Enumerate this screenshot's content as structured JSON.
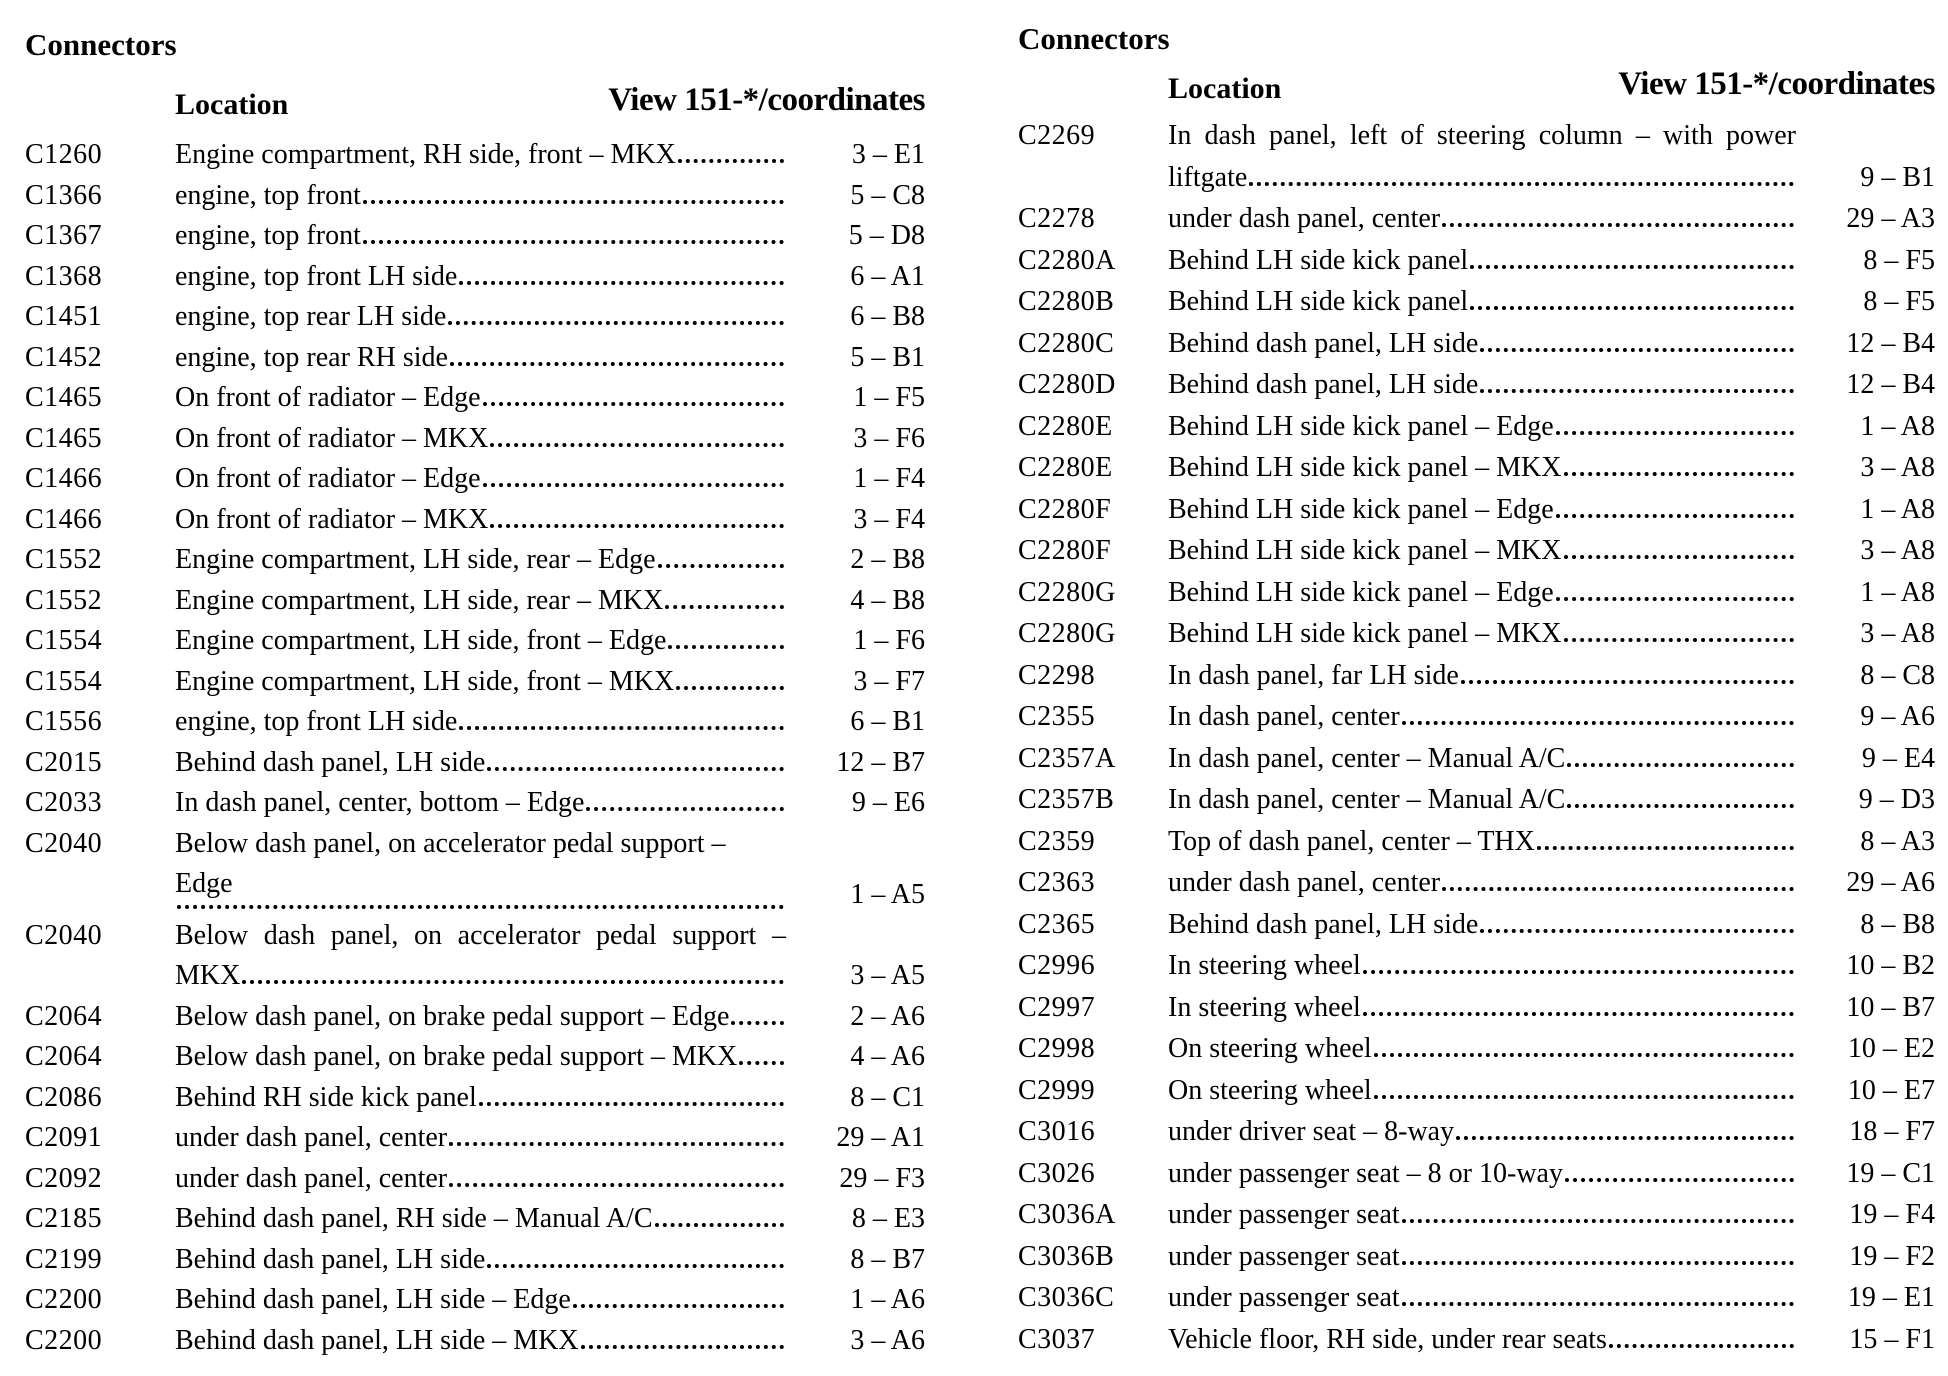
{
  "colors": {
    "background": "#ffffff",
    "text": "#000000"
  },
  "page": {
    "columns": [
      {
        "section_title": "Connectors",
        "location_header": "Location",
        "view_header": "View 151-*/coordinates",
        "rows": [
          {
            "id": "C1260",
            "loc": "Engine compartment, RH side, front – MKX",
            "coord": "3 – E1"
          },
          {
            "id": "C1366",
            "loc": "engine, top front",
            "coord": "5 – C8"
          },
          {
            "id": "C1367",
            "loc": "engine, top front",
            "coord": "5 – D8"
          },
          {
            "id": "C1368",
            "loc": "engine, top front LH side",
            "coord": "6 – A1"
          },
          {
            "id": "C1451",
            "loc": "engine, top rear LH side",
            "coord": "6 – B8"
          },
          {
            "id": "C1452",
            "loc": "engine, top rear RH side",
            "coord": "5 – B1"
          },
          {
            "id": "C1465",
            "loc": "On front of radiator – Edge",
            "coord": "1 – F5"
          },
          {
            "id": "C1465",
            "loc": "On front of radiator – MKX",
            "coord": "3 – F6"
          },
          {
            "id": "C1466",
            "loc": "On front of radiator – Edge",
            "coord": "1 – F4"
          },
          {
            "id": "C1466",
            "loc": "On front of radiator – MKX",
            "coord": "3 – F4"
          },
          {
            "id": "C1552",
            "loc": "Engine compartment, LH side, rear – Edge",
            "coord": "2 – B8"
          },
          {
            "id": "C1552",
            "loc": "Engine compartment, LH side, rear – MKX",
            "coord": "4 – B8"
          },
          {
            "id": "C1554",
            "loc": "Engine compartment, LH side, front – Edge",
            "coord": "1 – F6"
          },
          {
            "id": "C1554",
            "loc": "Engine compartment, LH side, front – MKX",
            "coord": "3 – F7"
          },
          {
            "id": "C1556",
            "loc": "engine, top front LH side",
            "coord": "6 – B1"
          },
          {
            "id": "C2015",
            "loc": "Behind dash panel, LH side",
            "coord": "12 – B7"
          },
          {
            "id": "C2033",
            "loc": "In dash panel, center, bottom – Edge",
            "coord": "9 – E6"
          },
          {
            "id": "C2040",
            "loc": "Below dash panel, on accelerator pedal support – Edge",
            "loc2": "",
            "justify": false,
            "coord": "1 – A5"
          },
          {
            "id": "C2040",
            "loc": "Below dash panel, on accelerator pedal support –",
            "loc2": "MKX",
            "justify": true,
            "coord": "3 – A5"
          },
          {
            "id": "C2064",
            "loc": "Below dash panel, on brake pedal support – Edge",
            "coord": "2 – A6"
          },
          {
            "id": "C2064",
            "loc": "Below dash panel, on brake pedal support – MKX",
            "coord": "4 – A6"
          },
          {
            "id": "C2086",
            "loc": "Behind RH side kick panel",
            "coord": "8 – C1"
          },
          {
            "id": "C2091",
            "loc": "under dash panel, center",
            "coord": "29 – A1"
          },
          {
            "id": "C2092",
            "loc": "under dash panel, center",
            "coord": "29 – F3"
          },
          {
            "id": "C2185",
            "loc": "Behind dash panel, RH side – Manual A/C",
            "coord": "8 – E3"
          },
          {
            "id": "C2199",
            "loc": "Behind dash panel, LH side",
            "coord": "8 – B7"
          },
          {
            "id": "C2200",
            "loc": "Behind dash panel, LH side – Edge",
            "coord": "1 – A6"
          },
          {
            "id": "C2200",
            "loc": "Behind dash panel, LH side – MKX",
            "coord": "3 – A6"
          }
        ]
      },
      {
        "section_title": "Connectors",
        "location_header": "Location",
        "view_header": "View 151-*/coordinates",
        "rows": [
          {
            "id": "C2269",
            "loc": "In dash panel, left of steering column – with power",
            "loc2": "liftgate",
            "justify": true,
            "coord": "9 – B1"
          },
          {
            "id": "C2278",
            "loc": "under dash panel, center",
            "coord": "29 – A3"
          },
          {
            "id": "C2280A",
            "loc": "Behind LH side kick panel",
            "coord": "8 – F5"
          },
          {
            "id": "C2280B",
            "loc": "Behind LH side kick panel",
            "coord": "8 – F5"
          },
          {
            "id": "C2280C",
            "loc": "Behind dash panel, LH side",
            "coord": "12 – B4"
          },
          {
            "id": "C2280D",
            "loc": "Behind dash panel, LH side",
            "coord": "12 – B4"
          },
          {
            "id": "C2280E",
            "loc": "Behind LH side kick panel – Edge",
            "coord": "1 – A8"
          },
          {
            "id": "C2280E",
            "loc": "Behind LH side kick panel – MKX",
            "coord": "3 – A8"
          },
          {
            "id": "C2280F",
            "loc": "Behind LH side kick panel – Edge",
            "coord": "1 – A8"
          },
          {
            "id": "C2280F",
            "loc": "Behind LH side kick panel – MKX",
            "coord": "3 – A8"
          },
          {
            "id": "C2280G",
            "loc": "Behind LH side kick panel – Edge",
            "coord": "1 – A8"
          },
          {
            "id": "C2280G",
            "loc": "Behind LH side kick panel – MKX",
            "coord": "3 – A8"
          },
          {
            "id": "C2298",
            "loc": "In dash panel, far LH side",
            "coord": "8 – C8"
          },
          {
            "id": "C2355",
            "loc": "In dash panel, center",
            "coord": "9 – A6"
          },
          {
            "id": "C2357A",
            "loc": "In dash panel, center – Manual A/C",
            "coord": "9 – E4"
          },
          {
            "id": "C2357B",
            "loc": "In dash panel, center – Manual A/C",
            "coord": "9 – D3"
          },
          {
            "id": "C2359",
            "loc": "Top of dash panel, center – THX",
            "coord": "8 – A3"
          },
          {
            "id": "C2363",
            "loc": "under dash panel, center",
            "coord": "29 – A6"
          },
          {
            "id": "C2365",
            "loc": "Behind dash panel, LH side",
            "coord": "8 – B8"
          },
          {
            "id": "C2996",
            "loc": "In steering wheel",
            "coord": "10 – B2"
          },
          {
            "id": "C2997",
            "loc": "In steering wheel",
            "coord": "10 – B7"
          },
          {
            "id": "C2998",
            "loc": "On steering wheel",
            "coord": "10 – E2"
          },
          {
            "id": "C2999",
            "loc": "On steering wheel",
            "coord": "10 – E7"
          },
          {
            "id": "C3016",
            "loc": "under driver seat – 8-way",
            "coord": "18 – F7"
          },
          {
            "id": "C3026",
            "loc": "under passenger seat – 8 or 10-way",
            "coord": "19 – C1"
          },
          {
            "id": "C3036A",
            "loc": "under passenger seat",
            "coord": "19 – F4"
          },
          {
            "id": "C3036B",
            "loc": "under passenger seat",
            "coord": "19 – F2"
          },
          {
            "id": "C3036C",
            "loc": "under passenger seat",
            "coord": "19 – E1"
          },
          {
            "id": "C3037",
            "loc": "Vehicle floor, RH side, under rear seats",
            "coord": "15 – F1"
          }
        ]
      }
    ]
  }
}
